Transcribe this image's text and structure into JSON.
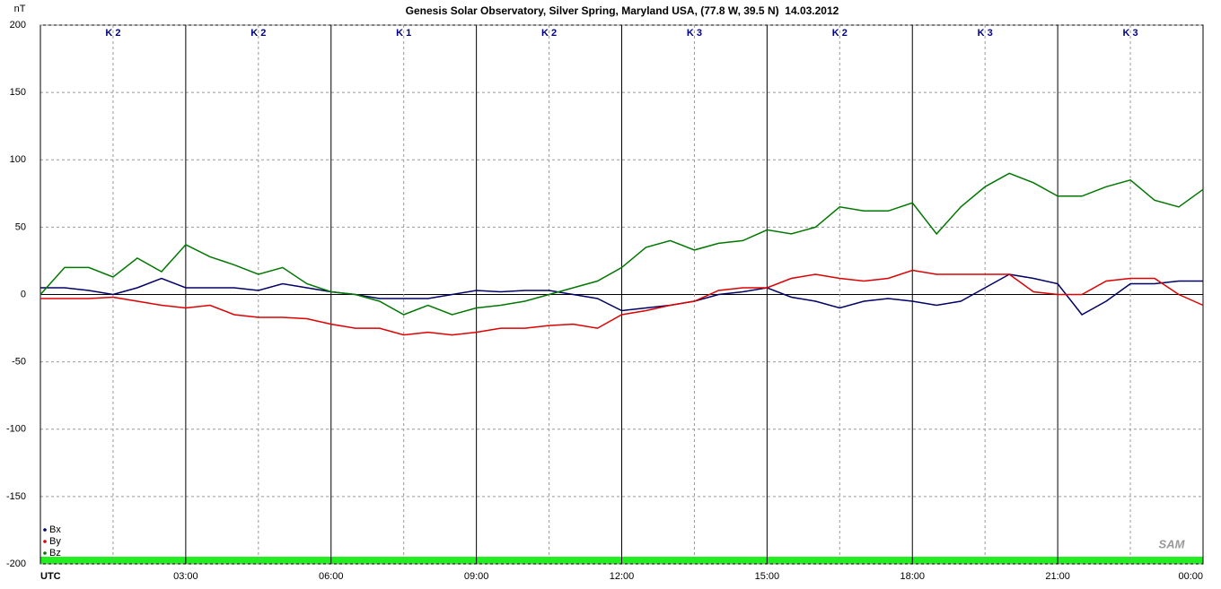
{
  "chart_data": {
    "type": "line",
    "title": "Genesis Solar Observatory, Silver Spring, Maryland USA, (77.8 W, 39.5 N)  14.03.2012",
    "y_label": "nT",
    "logo": "SAM",
    "k_labels": [
      "K 2",
      "K 2",
      "K 1",
      "K 2",
      "K 3",
      "K 2",
      "K 3",
      "K 3"
    ],
    "x": [
      0,
      0.5,
      1,
      1.5,
      2,
      2.5,
      3,
      3.5,
      4,
      4.5,
      5,
      5.5,
      6,
      6.5,
      7,
      7.5,
      8,
      8.5,
      9,
      9.5,
      10,
      10.5,
      11,
      11.5,
      12,
      12.5,
      13,
      13.5,
      14,
      14.5,
      15,
      15.5,
      16,
      16.5,
      17,
      17.5,
      18,
      18.5,
      19,
      19.5,
      20,
      20.5,
      21,
      21.5,
      22,
      22.5,
      23,
      23.5,
      24
    ],
    "series": [
      {
        "name": "Bx",
        "color": "#000066",
        "values": [
          5,
          5,
          3,
          0,
          5,
          12,
          5,
          5,
          5,
          3,
          8,
          5,
          2,
          0,
          -3,
          -3,
          -3,
          0,
          3,
          2,
          3,
          3,
          0,
          -3,
          -12,
          -10,
          -8,
          -5,
          0,
          2,
          5,
          -2,
          -5,
          -10,
          -5,
          -3,
          -5,
          -8,
          -5,
          5,
          15,
          12,
          8,
          -15,
          -5,
          8,
          8,
          10,
          10
        ]
      },
      {
        "name": "By",
        "color": "#dd0000",
        "values": [
          -3,
          -3,
          -3,
          -2,
          -5,
          -8,
          -10,
          -8,
          -15,
          -17,
          -17,
          -18,
          -22,
          -25,
          -25,
          -30,
          -28,
          -30,
          -28,
          -25,
          -25,
          -23,
          -22,
          -25,
          -15,
          -12,
          -8,
          -5,
          3,
          5,
          5,
          12,
          15,
          12,
          10,
          12,
          18,
          15,
          15,
          15,
          15,
          2,
          0,
          0,
          10,
          12,
          12,
          0,
          -8
        ]
      },
      {
        "name": "Bz",
        "color": "#007700",
        "values": [
          0,
          20,
          20,
          13,
          27,
          17,
          37,
          28,
          22,
          15,
          20,
          8,
          2,
          0,
          -5,
          -15,
          -8,
          -15,
          -10,
          -8,
          -5,
          0,
          5,
          10,
          20,
          35,
          40,
          33,
          38,
          40,
          48,
          45,
          50,
          65,
          62,
          62,
          68,
          45,
          65,
          80,
          90,
          83,
          73,
          73,
          80,
          85,
          70,
          65,
          78
        ]
      }
    ],
    "xlim": [
      0,
      24
    ],
    "xticks": [
      {
        "value": 0,
        "label": "UTC"
      },
      {
        "value": 3,
        "label": "03:00"
      },
      {
        "value": 6,
        "label": "06:00"
      },
      {
        "value": 9,
        "label": "09:00"
      },
      {
        "value": 12,
        "label": "12:00"
      },
      {
        "value": 15,
        "label": "15:00"
      },
      {
        "value": 18,
        "label": "18:00"
      },
      {
        "value": 21,
        "label": "21:00"
      },
      {
        "value": 24,
        "label": "00:00"
      }
    ],
    "x_minor_ticks": [
      1.5,
      4.5,
      7.5,
      10.5,
      13.5,
      16.5,
      19.5,
      22.5
    ],
    "ylim": [
      -200,
      200
    ],
    "yticks": [
      200,
      150,
      100,
      50,
      0,
      -50,
      -100,
      -150,
      -200
    ],
    "grid": true,
    "legend": "bottom-left"
  }
}
